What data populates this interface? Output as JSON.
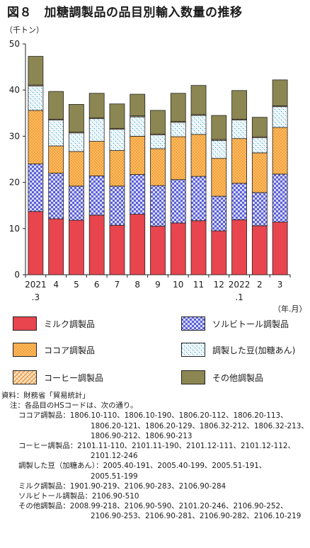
{
  "title": "図８　加糖調製品の品目別輸入数量の推移",
  "y_unit": "（千トン）",
  "x_unit": "（年.月）",
  "chart_data": {
    "type": "bar",
    "stacked": true,
    "categories": [
      [
        "2021",
        ".3"
      ],
      [
        "4"
      ],
      [
        "5"
      ],
      [
        "6"
      ],
      [
        "7"
      ],
      [
        "8"
      ],
      [
        "9"
      ],
      [
        "10"
      ],
      [
        "11"
      ],
      [
        "12"
      ],
      [
        "2022",
        ".1"
      ],
      [
        "2"
      ],
      [
        "3"
      ]
    ],
    "ylim": [
      0,
      50
    ],
    "yticks": [
      0,
      10,
      20,
      30,
      40,
      50
    ],
    "grid": false,
    "legend_position": "bottom",
    "series": [
      {
        "name": "ミルク調製品",
        "color": "#e8454e",
        "pattern": "solid",
        "values": [
          13.7,
          12.1,
          11.8,
          12.9,
          10.7,
          13.1,
          10.5,
          11.2,
          11.7,
          9.5,
          11.9,
          10.6,
          11.4
        ]
      },
      {
        "name": "ソルビトール調製品",
        "color": "#5a5fd6",
        "pattern": "check",
        "values": [
          10.3,
          9.9,
          7.4,
          8.5,
          8.5,
          8.6,
          8.8,
          9.4,
          9.6,
          7.5,
          7.9,
          7.2,
          10.4
        ]
      },
      {
        "name": "ココア調製品",
        "color": "#f5a135",
        "pattern": "dots",
        "values": [
          11.6,
          5.9,
          7.5,
          7.5,
          7.7,
          8.3,
          8.0,
          9.3,
          9.1,
          8.2,
          9.7,
          8.6,
          10.1
        ]
      },
      {
        "name": "調製した豆(加糖あん)",
        "color": "#3aa0c8",
        "pattern": "dots",
        "values": [
          5.3,
          5.6,
          4.0,
          4.9,
          4.6,
          4.2,
          3.0,
          3.1,
          4.1,
          3.9,
          4.0,
          3.3,
          4.5
        ]
      },
      {
        "name": "コーヒー調製品",
        "color": "#f5a135",
        "pattern": "weave",
        "values": [
          0.2,
          0.2,
          0.2,
          0.2,
          0.2,
          0.2,
          0.2,
          0.2,
          0.2,
          0.2,
          0.2,
          0.2,
          0.2
        ]
      },
      {
        "name": "その他調製品",
        "color": "#8c8752",
        "pattern": "solid",
        "values": [
          6.2,
          6.0,
          6.0,
          5.3,
          5.3,
          4.7,
          5.1,
          6.1,
          6.3,
          5.2,
          6.2,
          4.2,
          5.6
        ]
      }
    ]
  },
  "legend_layout": [
    "ミルク調製品",
    "ソルビトール調製品",
    "ココア調製品",
    "調製した豆(加糖あん)",
    "コーヒー調製品",
    "その他調製品"
  ],
  "notes": {
    "source_label": "資料：財務省「貿易統計」",
    "note_label": "注：各品目のHSコードは、次の通り。",
    "cocoa_1": "ココア調製品：1806.10-110、1806.10-190、1806.20-112、1806.20-113、",
    "cocoa_2": "1806.20-121、1806.20-129、1806.32-212、1806.32-213、",
    "cocoa_3": "1806.90-212、1806.90-213",
    "coffee_1": "コーヒー調製品：2101.11-110、2101.11-190、2101.12-111、2101.12-112、",
    "coffee_2": "2101.12-246",
    "bean_1": "調製した豆（加糖あん）：2005.40-191、2005.40-199、2005.51-191、",
    "bean_2": "2005.51-199",
    "milk_1": "ミルク調製品：1901.90-219、2106.90-283、2106.90-284",
    "sorbitol_1": "ソルビトール調製品：2106.90-510",
    "other_1": "その他調製品：2008.99-218、2106.90-590、2101.20-246、2106.90-252、",
    "other_2": "2106.90-253、2106.90-281、2106.90-282、2106.10-219"
  }
}
